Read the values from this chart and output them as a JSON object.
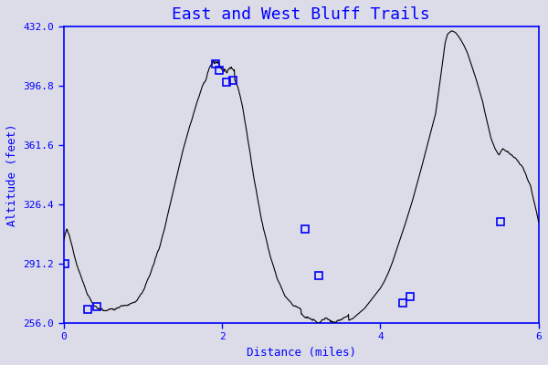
{
  "title": "East and West Bluff Trails",
  "xlabel": "Distance (miles)",
  "ylabel": "Altitude (feet)",
  "xlim": [
    0,
    6
  ],
  "ylim": [
    256,
    432
  ],
  "yticks": [
    256,
    291.2,
    326.4,
    361.6,
    396.8,
    432
  ],
  "xticks": [
    0,
    2,
    4,
    6
  ],
  "line_color": "black",
  "marker_color": "blue",
  "axis_color": "blue",
  "background": "#dcdce8",
  "title_color": "blue",
  "title_fontsize": 13,
  "label_fontsize": 9,
  "tick_fontsize": 8,
  "waypoints_x": [
    0.02,
    0.3,
    0.42,
    1.92,
    1.97,
    2.06,
    2.14,
    3.05,
    3.22,
    4.28,
    4.38,
    5.52
  ],
  "waypoints_y": [
    291.2,
    264,
    266,
    410,
    406,
    399,
    400,
    312,
    284,
    268,
    272,
    316
  ]
}
